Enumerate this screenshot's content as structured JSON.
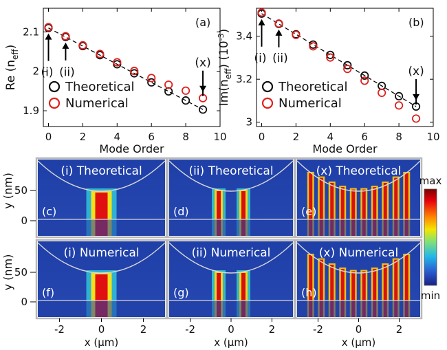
{
  "chart_data": [
    {
      "panel": "(a)",
      "type": "scatter",
      "xlabel": "Mode Order",
      "ylabel_main": "Re (n",
      "ylabel_sub": "eff",
      "ylabel_end": ")",
      "xlim": [
        -0.3,
        10
      ],
      "ylim": [
        1.86,
        2.16
      ],
      "xticks": [
        0,
        2,
        4,
        6,
        8,
        10
      ],
      "yticks": [
        1.9,
        2,
        2.1
      ],
      "ytick_labels": [
        "1.9",
        "2",
        "2.1"
      ],
      "series": [
        {
          "name": "Theoretical",
          "color": "#111111",
          "x": [
            0,
            1,
            2,
            3,
            4,
            5,
            6,
            7,
            8,
            9
          ],
          "y": [
            2.11,
            2.087,
            2.064,
            2.041,
            2.018,
            1.995,
            1.972,
            1.949,
            1.926,
            1.903
          ]
        },
        {
          "name": "Numerical",
          "color": "#e0201c",
          "x": [
            0,
            1,
            2,
            3,
            4,
            5,
            6,
            7,
            8,
            9
          ],
          "y": [
            2.112,
            2.089,
            2.066,
            2.044,
            2.023,
            2.001,
            1.983,
            1.966,
            1.951,
            1.932
          ]
        }
      ],
      "fit_line": {
        "x": [
          0,
          9
        ],
        "y": [
          2.11,
          1.903
        ]
      },
      "annotations": [
        "(i)",
        "(ii)",
        "(x)"
      ]
    },
    {
      "panel": "(b)",
      "type": "scatter",
      "xlabel": "Mode Order",
      "ylabel_main": "Im(n",
      "ylabel_sub": "eff",
      "ylabel_mid": ") (10",
      "ylabel_sup": "-3",
      "ylabel_end": ")",
      "xlim": [
        -0.3,
        10
      ],
      "ylim": [
        2.98,
        3.53
      ],
      "xticks": [
        0,
        2,
        4,
        6,
        8,
        10
      ],
      "yticks": [
        3,
        3.2,
        3.4
      ],
      "ytick_labels": [
        "3",
        "3.2",
        "3.4"
      ],
      "series": [
        {
          "name": "Theoretical",
          "color": "#111111",
          "x": [
            0,
            1,
            2,
            3,
            4,
            5,
            6,
            7,
            8,
            9
          ],
          "y": [
            3.505,
            3.457,
            3.409,
            3.361,
            3.313,
            3.265,
            3.217,
            3.169,
            3.121,
            3.073
          ]
        },
        {
          "name": "Numerical",
          "color": "#e0201c",
          "x": [
            0,
            1,
            2,
            3,
            4,
            5,
            6,
            7,
            8,
            9
          ],
          "y": [
            3.51,
            3.459,
            3.406,
            3.353,
            3.301,
            3.248,
            3.193,
            3.137,
            3.078,
            3.017
          ]
        }
      ],
      "fit_line": {
        "x": [
          0,
          9
        ],
        "y": [
          3.505,
          3.073
        ]
      },
      "annotations": [
        "(i)",
        "(ii)",
        "(x)"
      ]
    },
    {
      "type": "heatmap",
      "xlabel": "x (μm)",
      "ylabel": "y (nm)",
      "xticks": [
        "-2",
        "0",
        "2"
      ],
      "yticks": [
        "50",
        "0"
      ],
      "colorbar": {
        "max": "max",
        "min": "min"
      },
      "panels": [
        {
          "tag": "(c)",
          "title": "(i) Theoretical",
          "stripes": 1
        },
        {
          "tag": "(d)",
          "title": "(ii) Theoretical",
          "stripes": 2
        },
        {
          "tag": "(e)",
          "title": "(x) Theoretical",
          "stripes": 10
        },
        {
          "tag": "(f)",
          "title": "(i) Numerical",
          "stripes": 1
        },
        {
          "tag": "(g)",
          "title": "(ii) Numerical",
          "stripes": 2
        },
        {
          "tag": "(h)",
          "title": "(x) Numerical",
          "stripes": 10
        }
      ]
    }
  ]
}
